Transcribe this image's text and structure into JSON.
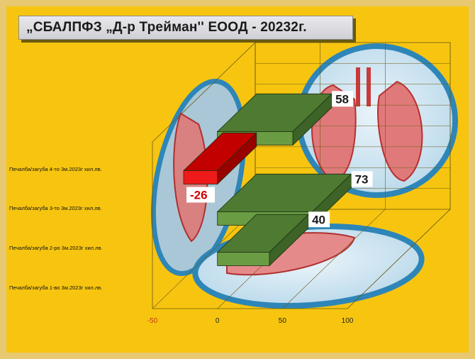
{
  "title": "„СБАЛПФЗ „Д-р Трейман'' ЕООД     - 20232г.",
  "chart_data": {
    "type": "bar",
    "orientation": "horizontal",
    "categories": [
      "Печалба/загуба 4-то 3м.2023г хил.лв.",
      "Печалба/загуба 3-то 3м.2023г хил.лв.",
      "Печалба/загуба 2-ро 3м.2023г хил.лв.",
      "Печалба/загуба 1-во 3м.2023г хил.лв."
    ],
    "values": [
      58,
      -26,
      73,
      40
    ],
    "xlim": [
      -50,
      100
    ],
    "xticks": [
      -50,
      0,
      50,
      100
    ],
    "colors": {
      "positive": "#5a8a3a",
      "negative": "#e00000"
    },
    "grid": true,
    "legend": "none"
  }
}
